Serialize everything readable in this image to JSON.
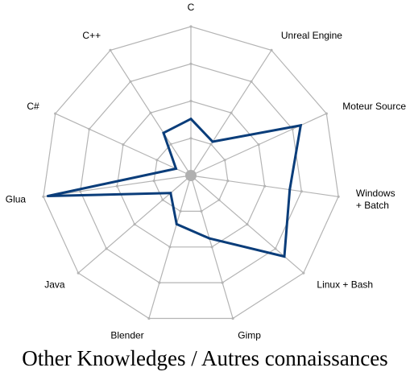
{
  "chart_data": {
    "type": "radar",
    "title": "Other Knowledges / Autres connaissances",
    "categories": [
      "C",
      "Unreal Engine",
      "Moteur Source",
      "Windows + Batch",
      "Linux + Bash",
      "Gimp",
      "Blender",
      "Java",
      "Glua",
      "C#",
      "C++"
    ],
    "series": [
      {
        "values": [
          0.38,
          0.27,
          0.81,
          0.67,
          0.83,
          0.44,
          0.34,
          0.18,
          0.97,
          0.11,
          0.34
        ]
      }
    ],
    "rlim": [
      0,
      1
    ],
    "rings": 4,
    "grid": true,
    "legend": "none"
  },
  "colors": {
    "series": "#0a3d7a",
    "grid": "#b4b4b4",
    "center": "#b0b0b0"
  }
}
